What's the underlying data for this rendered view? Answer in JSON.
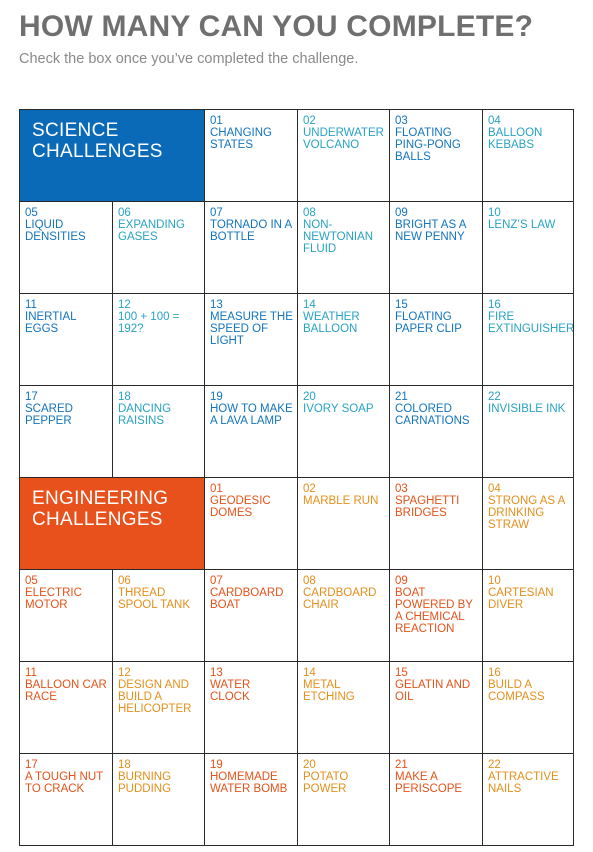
{
  "title": "HOW MANY CAN YOU COMPLETE?",
  "subtitle": "Check the box once you’ve completed the challenge.",
  "colors": {
    "science_dark": "#1274bd",
    "science_light": "#27a3c4",
    "science_header": "#0a6ab8",
    "engineering_dark": "#e4531a",
    "engineering_light": "#e58f1b",
    "engineering_header": "#e8501c"
  },
  "science": {
    "header_line1": "SCIENCE",
    "header_line2": "CHALLENGES",
    "items": [
      {
        "num": "01",
        "name": "CHANGING STATES"
      },
      {
        "num": "02",
        "name": "UNDERWATER VOLCANO"
      },
      {
        "num": "03",
        "name": "FLOATING PING-PONG BALLS"
      },
      {
        "num": "04",
        "name": "BALLOON KEBABS"
      },
      {
        "num": "05",
        "name": "LIQUID DENSITIES"
      },
      {
        "num": "06",
        "name": "EXPANDING GASES"
      },
      {
        "num": "07",
        "name": "TORNADO IN A BOTTLE"
      },
      {
        "num": "08",
        "name": "NON-NEWTONIAN FLUID"
      },
      {
        "num": "09",
        "name": "BRIGHT AS A NEW PENNY"
      },
      {
        "num": "10",
        "name": "LENZ’S LAW"
      },
      {
        "num": "11",
        "name": "INERTIAL EGGS"
      },
      {
        "num": "12",
        "name": "100 + 100 = 192?"
      },
      {
        "num": "13",
        "name": "MEASURE THE SPEED OF LIGHT"
      },
      {
        "num": "14",
        "name": "WEATHER BALLOON"
      },
      {
        "num": "15",
        "name": "FLOATING PAPER CLIP"
      },
      {
        "num": "16",
        "name": "FIRE EXTINGUISHER"
      },
      {
        "num": "17",
        "name": "SCARED PEPPER"
      },
      {
        "num": "18",
        "name": "DANCING RAISINS"
      },
      {
        "num": "19",
        "name": "HOW TO MAKE A LAVA LAMP"
      },
      {
        "num": "20",
        "name": "IVORY SOAP"
      },
      {
        "num": "21",
        "name": "COLORED CARNATIONS"
      },
      {
        "num": "22",
        "name": "INVISIBLE INK"
      }
    ]
  },
  "engineering": {
    "header_line1": "ENGINEERING",
    "header_line2": "CHALLENGES",
    "items": [
      {
        "num": "01",
        "name": "GEODESIC DOMES"
      },
      {
        "num": "02",
        "name": "MARBLE RUN"
      },
      {
        "num": "03",
        "name": "SPAGHETTI BRIDGES"
      },
      {
        "num": "04",
        "name": "STRONG AS A DRINKING STRAW"
      },
      {
        "num": "05",
        "name": "ELECTRIC MOTOR"
      },
      {
        "num": "06",
        "name": "THREAD SPOOL TANK"
      },
      {
        "num": "07",
        "name": "CARDBOARD BOAT"
      },
      {
        "num": "08",
        "name": "CARDBOARD CHAIR"
      },
      {
        "num": "09",
        "name": "BOAT POWERED BY A CHEMICAL REACTION"
      },
      {
        "num": "10",
        "name": "CARTESIAN DIVER"
      },
      {
        "num": "11",
        "name": "BALLOON CAR RACE"
      },
      {
        "num": "12",
        "name": "DESIGN AND BUILD A HELICOPTER"
      },
      {
        "num": "13",
        "name": "WATER CLOCK"
      },
      {
        "num": "14",
        "name": "METAL ETCHING"
      },
      {
        "num": "15",
        "name": "GELATIN AND OIL"
      },
      {
        "num": "16",
        "name": "BUILD A COMPASS"
      },
      {
        "num": "17",
        "name": "A TOUGH NUT TO CRACK"
      },
      {
        "num": "18",
        "name": "BURNING PUDDING"
      },
      {
        "num": "19",
        "name": "HOMEMADE WATER BOMB"
      },
      {
        "num": "20",
        "name": "POTATO POWER"
      },
      {
        "num": "21",
        "name": "MAKE A PERISCOPE"
      },
      {
        "num": "22",
        "name": "ATTRACTIVE NAILS"
      }
    ]
  }
}
